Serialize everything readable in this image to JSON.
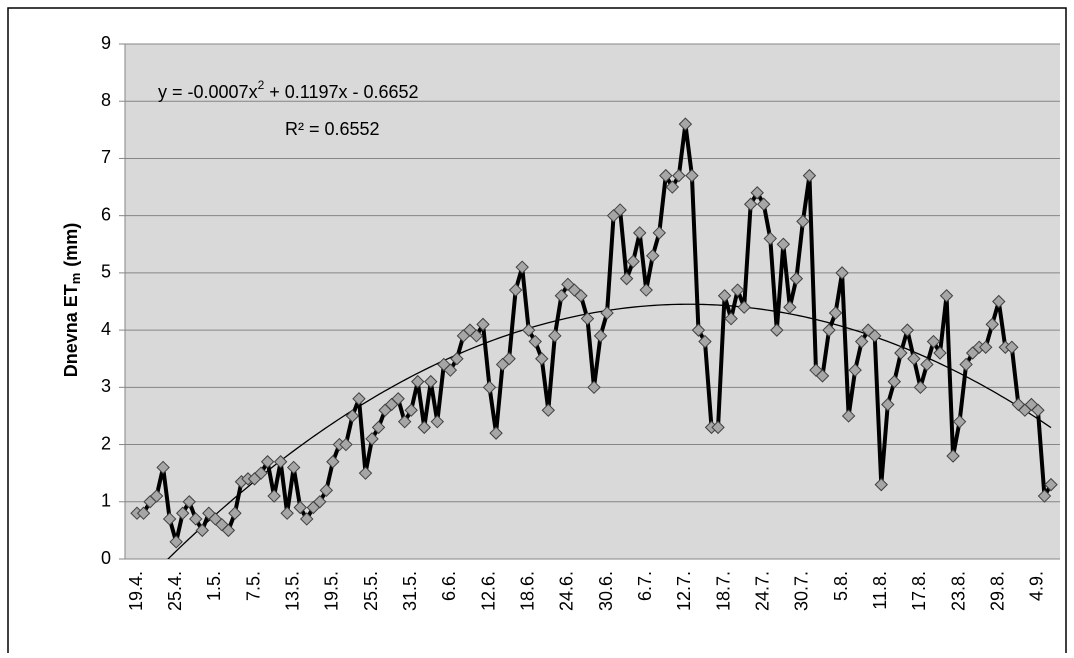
{
  "chart_data": {
    "type": "line",
    "y_label": {
      "text": "Dnevna ET",
      "subscript": "m",
      "suffix": "(mm)"
    },
    "trendline_equation": [
      "y = -0.0007x",
      "2",
      " + 0.1197x - 0.6652"
    ],
    "trendline_r2": "R² = 0.6552",
    "trendline": {
      "type": "polynomial",
      "coefficients": [
        -0.0007,
        0.1197,
        -0.6652
      ],
      "color": "#000000"
    },
    "categories": [
      "19.4.",
      null,
      null,
      null,
      null,
      null,
      "25.4.",
      null,
      null,
      null,
      null,
      null,
      "1.5.",
      null,
      null,
      null,
      null,
      null,
      "7.5.",
      null,
      null,
      null,
      null,
      null,
      "13.5.",
      null,
      null,
      null,
      null,
      null,
      "19.5.",
      null,
      null,
      null,
      null,
      null,
      "25.5.",
      null,
      null,
      null,
      null,
      null,
      "31.5.",
      null,
      null,
      null,
      null,
      null,
      "6.6.",
      null,
      null,
      null,
      null,
      null,
      "12.6.",
      null,
      null,
      null,
      null,
      null,
      "18.6.",
      null,
      null,
      null,
      null,
      null,
      "24.6.",
      null,
      null,
      null,
      null,
      null,
      "30.6.",
      null,
      null,
      null,
      null,
      null,
      "6.7.",
      null,
      null,
      null,
      null,
      null,
      "12.7.",
      null,
      null,
      null,
      null,
      null,
      "18.7.",
      null,
      null,
      null,
      null,
      null,
      "24.7.",
      null,
      null,
      null,
      null,
      null,
      "30.7.",
      null,
      null,
      null,
      null,
      null,
      "5.8.",
      null,
      null,
      null,
      null,
      null,
      "11.8.",
      null,
      null,
      null,
      null,
      null,
      "17.8.",
      null,
      null,
      null,
      null,
      null,
      "23.8.",
      null,
      null,
      null,
      null,
      null,
      "29.8.",
      null,
      null,
      null,
      null,
      null,
      "4.9.",
      null,
      null
    ],
    "series": [
      {
        "color": "#000000",
        "marker_color": "#a6a6a6",
        "values": [
          0.8,
          0.8,
          1.0,
          1.1,
          1.6,
          0.7,
          0.3,
          0.8,
          1.0,
          0.7,
          0.5,
          0.8,
          0.7,
          0.6,
          0.5,
          0.8,
          1.35,
          1.4,
          1.4,
          1.5,
          1.7,
          1.1,
          1.7,
          0.8,
          1.6,
          0.9,
          0.7,
          0.9,
          1.0,
          1.2,
          1.7,
          2.0,
          2.0,
          2.5,
          2.8,
          1.5,
          2.1,
          2.3,
          2.6,
          2.7,
          2.8,
          2.4,
          2.6,
          3.1,
          2.3,
          3.1,
          2.4,
          3.4,
          3.3,
          3.5,
          3.9,
          4.0,
          3.9,
          4.1,
          3.0,
          2.2,
          3.4,
          3.5,
          4.7,
          5.1,
          4.0,
          3.8,
          3.5,
          2.6,
          3.9,
          4.6,
          4.8,
          4.7,
          4.6,
          4.2,
          3.0,
          3.9,
          4.3,
          6.0,
          6.1,
          4.9,
          5.2,
          5.7,
          4.7,
          5.3,
          5.7,
          6.7,
          6.5,
          6.7,
          7.6,
          6.7,
          4.0,
          3.8,
          2.3,
          2.3,
          4.6,
          4.2,
          4.7,
          4.4,
          6.2,
          6.4,
          6.2,
          5.6,
          4.0,
          5.5,
          4.4,
          4.9,
          5.9,
          6.7,
          3.3,
          3.2,
          4.0,
          4.3,
          5.0,
          2.5,
          3.3,
          3.8,
          4.0,
          3.9,
          1.3,
          2.7,
          3.1,
          3.6,
          4.0,
          3.5,
          3.0,
          3.4,
          3.8,
          3.6,
          4.6,
          1.8,
          2.4,
          3.4,
          3.6,
          3.7,
          3.7,
          4.1,
          4.5,
          3.7,
          3.7,
          2.7,
          2.6,
          2.7,
          2.6,
          1.1,
          1.3
        ]
      }
    ],
    "ylim": [
      0,
      9
    ],
    "yticks": [
      0,
      1,
      2,
      3,
      4,
      5,
      6,
      7,
      8,
      9
    ],
    "grid": true,
    "plot_background": "#d9d9d9",
    "grid_color": "#868686"
  }
}
